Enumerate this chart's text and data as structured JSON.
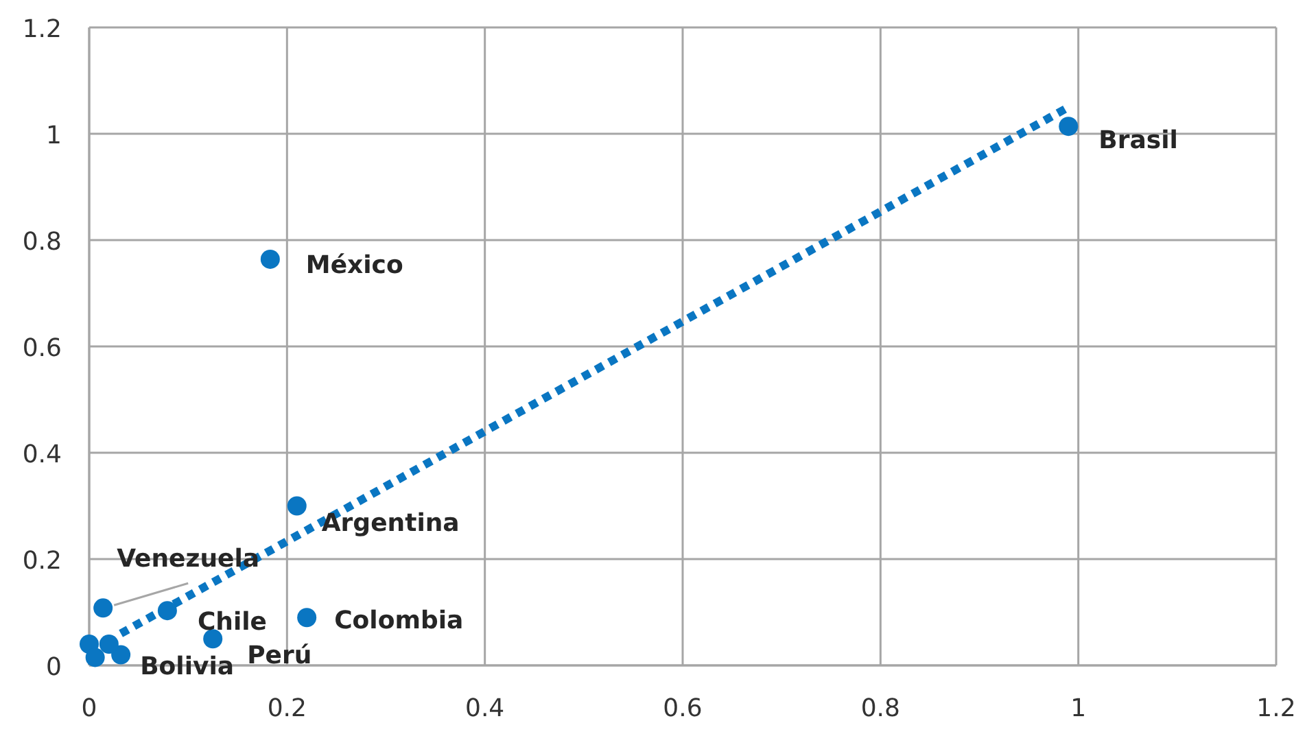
{
  "chart_data": {
    "type": "scatter",
    "xlim": [
      0,
      1.2
    ],
    "ylim": [
      0,
      1.2
    ],
    "xticks": [
      0,
      0.2,
      0.4,
      0.6,
      0.8,
      1,
      1.2
    ],
    "yticks": [
      0,
      0.2,
      0.4,
      0.6,
      0.8,
      1,
      1.2
    ],
    "grid": true,
    "marker": "circle",
    "series": [
      {
        "color": "#0a76c2",
        "x": [
          0.99,
          0.183,
          0.21,
          0.22,
          0.125,
          0.079,
          0.014,
          0.032,
          0,
          0.006,
          0.02
        ],
        "values": [
          1.014,
          0.764,
          0.3,
          0.09,
          0.05,
          0.103,
          0.108,
          0.02,
          0.04,
          0.015,
          0.04
        ]
      },
      {
        "type": "line",
        "color": "#0a76c2",
        "line_style": "dotted",
        "marker": "none",
        "x": [
          0.032,
          0.99
        ],
        "values": [
          0.06,
          1.05
        ]
      }
    ],
    "annotations": [
      {
        "text": "Brasil",
        "x": 0.99,
        "y": 1.014
      },
      {
        "text": "México",
        "x": 0.183,
        "y": 0.764
      },
      {
        "text": "Argentina",
        "x": 0.21,
        "y": 0.3
      },
      {
        "text": "Colombia",
        "x": 0.22,
        "y": 0.09
      },
      {
        "text": "Perú",
        "x": 0.125,
        "y": 0.05
      },
      {
        "text": "Chile",
        "x": 0.079,
        "y": 0.103
      },
      {
        "text": "Venezuela",
        "x": 0.014,
        "y": 0.108
      },
      {
        "text": "Bolivia",
        "x": 0.032,
        "y": 0.02
      }
    ]
  }
}
